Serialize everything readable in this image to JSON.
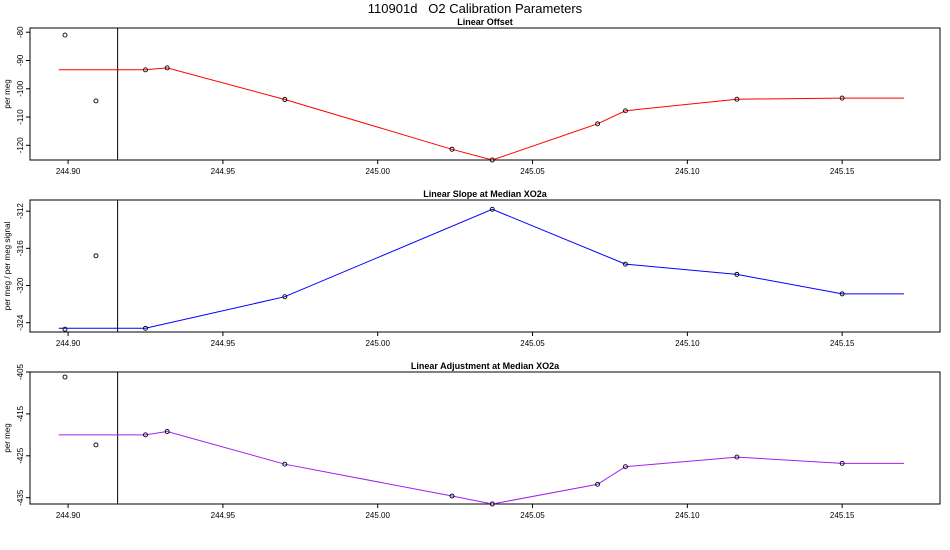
{
  "title": "110901d   O2 Calibration Parameters",
  "x_ticks": [
    "244.90",
    "244.95",
    "245.00",
    "245.05",
    "245.10",
    "245.15"
  ],
  "chart_data": [
    {
      "type": "line",
      "title": "Linear Offset",
      "xlabel": "",
      "ylabel": "per meg",
      "color": "#ff0000",
      "xlim": [
        244.8877,
        245.1816
      ],
      "ylim": [
        -125.2,
        -78.5
      ],
      "yticks": [
        -80,
        -90,
        -100,
        -110,
        -120
      ],
      "vline_x": 244.916,
      "line_x": [
        244.897,
        244.925,
        244.932,
        244.97,
        245.024,
        245.037,
        245.071,
        245.08,
        245.116,
        245.15,
        245.17
      ],
      "line_y": [
        -93.3,
        -93.3,
        -92.6,
        -103.8,
        -121.4,
        -125.2,
        -112.4,
        -107.8,
        -103.7,
        -103.3,
        -103.3
      ],
      "points_x": [
        244.899,
        244.909,
        244.925,
        244.932,
        244.97,
        245.024,
        245.037,
        245.071,
        245.08,
        245.116,
        245.15
      ],
      "points_y": [
        -81.0,
        -104.3,
        -93.3,
        -92.6,
        -103.8,
        -121.4,
        -125.2,
        -112.4,
        -107.8,
        -103.7,
        -103.3
      ]
    },
    {
      "type": "line",
      "title": "Linear Slope at Median XO2a",
      "xlabel": "",
      "ylabel": "per meg / per meg signal",
      "color": "#0000ff",
      "xlim": [
        244.8877,
        245.1816
      ],
      "ylim": [
        -325.0,
        -310.8
      ],
      "yticks": [
        -312,
        -316,
        -320,
        -324
      ],
      "vline_x": 244.916,
      "line_x": [
        244.897,
        244.925,
        244.97,
        245.037,
        245.08,
        245.116,
        245.15,
        245.17
      ],
      "line_y": [
        -324.6,
        -324.6,
        -321.2,
        -311.8,
        -317.7,
        -318.8,
        -320.9,
        -320.9
      ],
      "points_x": [
        244.899,
        244.909,
        244.925,
        244.97,
        245.037,
        245.08,
        245.116,
        245.15
      ],
      "points_y": [
        -324.7,
        -316.8,
        -324.6,
        -321.2,
        -311.8,
        -317.7,
        -318.8,
        -320.9
      ]
    },
    {
      "type": "line",
      "title": "Linear Adjustment at Median XO2a",
      "xlabel": "",
      "ylabel": "per meg",
      "color": "#a020f0",
      "xlim": [
        244.8877,
        245.1816
      ],
      "ylim": [
        -436.5,
        -405.0
      ],
      "yticks": [
        -405,
        -415,
        -425,
        -435
      ],
      "vline_x": 244.916,
      "line_x": [
        244.897,
        244.925,
        244.932,
        244.97,
        245.024,
        245.037,
        245.071,
        245.08,
        245.116,
        245.15,
        245.17
      ],
      "line_y": [
        -420.0,
        -420.0,
        -419.2,
        -427.0,
        -434.6,
        -436.5,
        -431.8,
        -427.6,
        -425.3,
        -426.8,
        -426.8
      ],
      "points_x": [
        244.899,
        244.909,
        244.925,
        244.932,
        244.97,
        245.024,
        245.037,
        245.071,
        245.08,
        245.116,
        245.15
      ],
      "points_y": [
        -406.2,
        -422.4,
        -420.0,
        -419.2,
        -427.0,
        -434.6,
        -436.5,
        -431.8,
        -427.6,
        -425.3,
        -426.8
      ]
    }
  ]
}
